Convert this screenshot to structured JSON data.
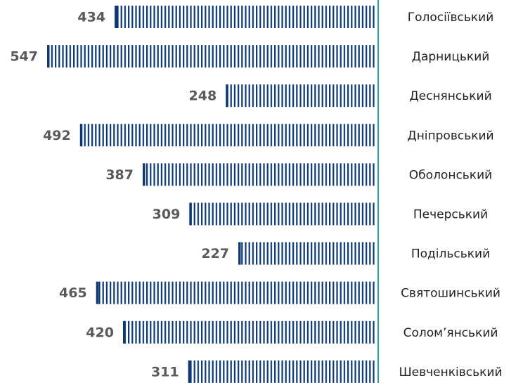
{
  "chart_data": {
    "type": "bar",
    "orientation": "horizontal",
    "color": "#0d3873",
    "axis_line_color": "#2a9d9a",
    "categories": [
      "Голосіївський",
      "Дарницький",
      "Деснянський",
      "Дніпровський",
      "Оболонський",
      "Печерський",
      "Подільський",
      "Святошинський",
      "Солом’янський",
      "Шевченківський"
    ],
    "values": [
      434,
      547,
      248,
      492,
      387,
      309,
      227,
      465,
      420,
      311
    ]
  }
}
